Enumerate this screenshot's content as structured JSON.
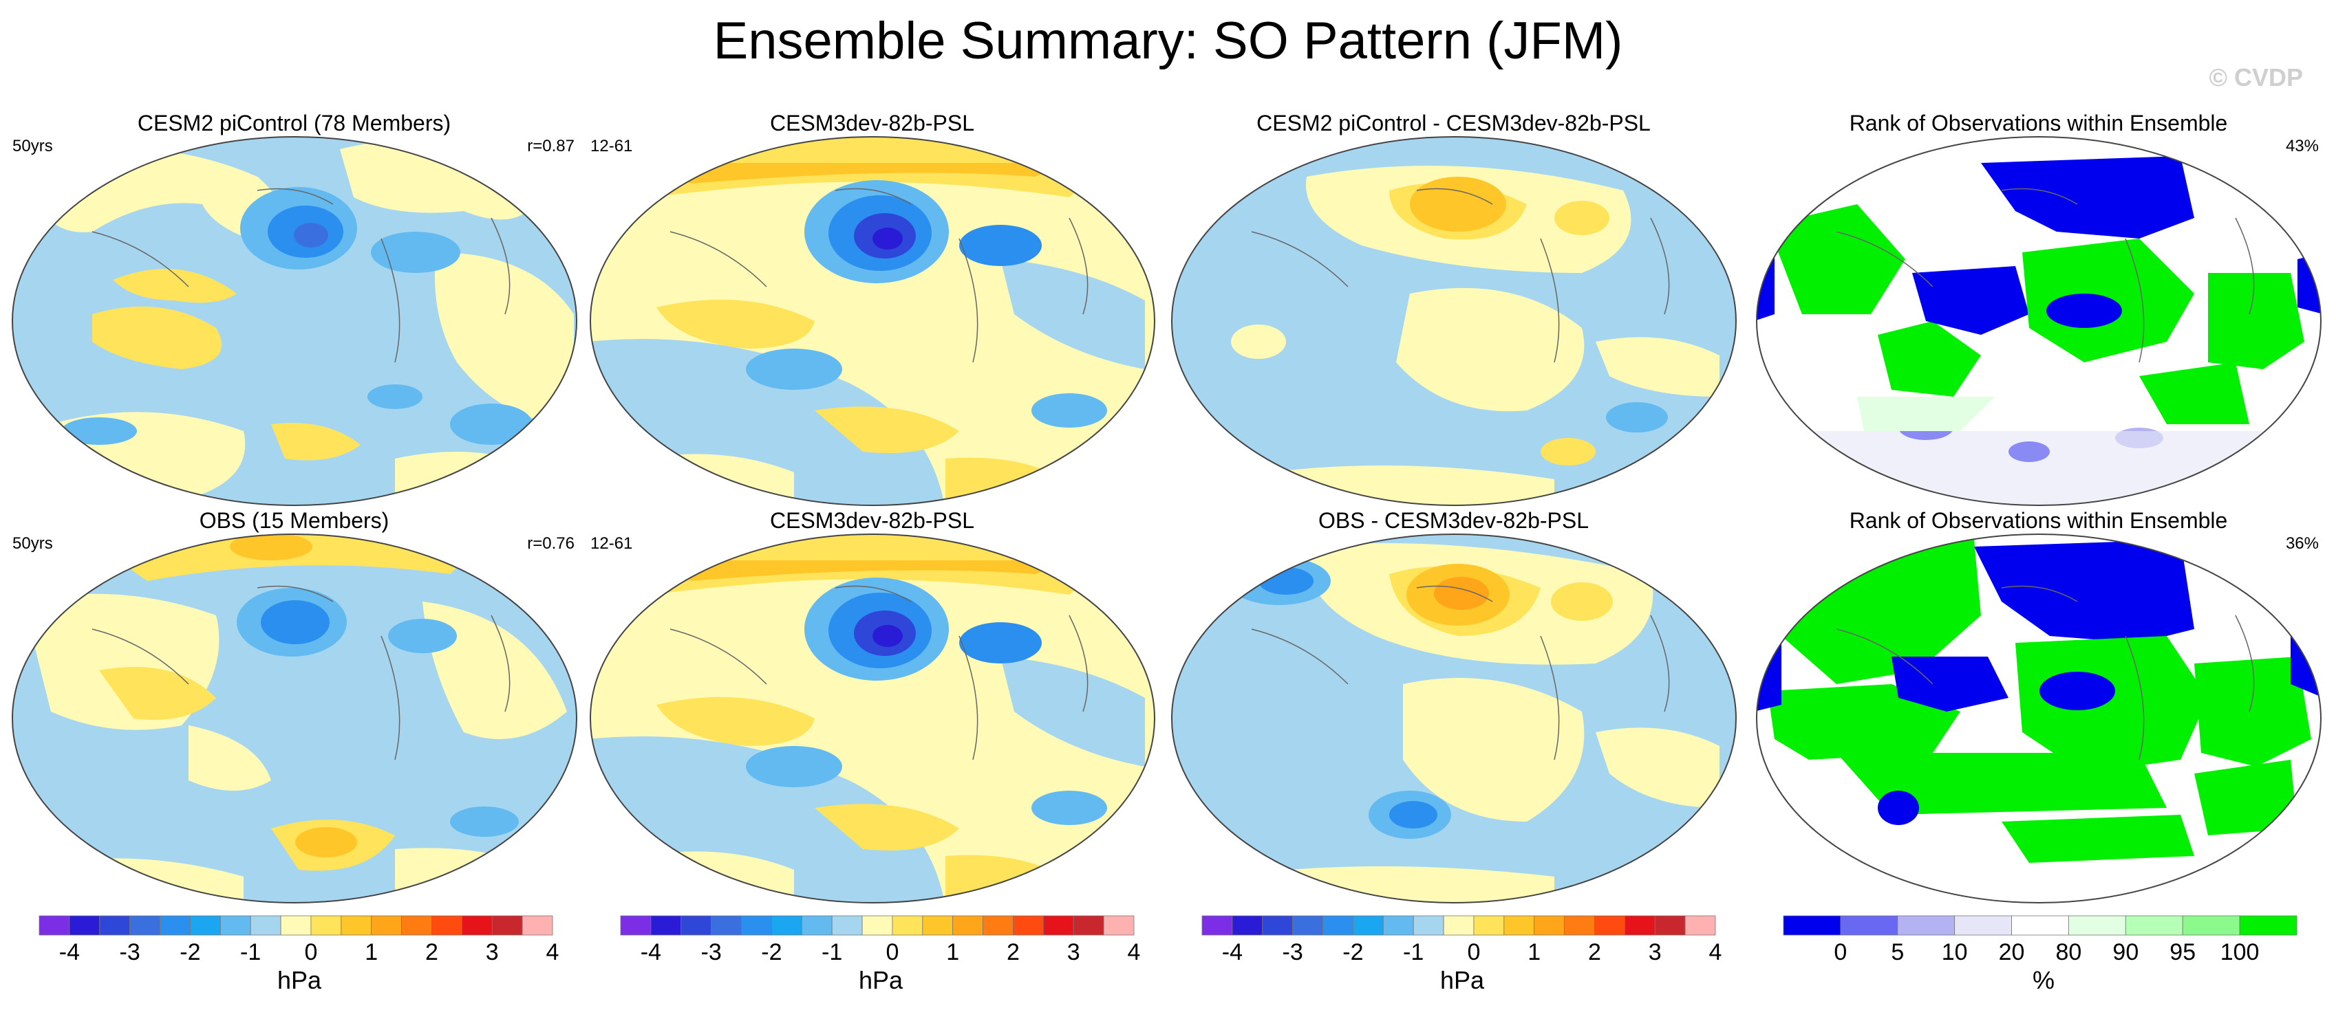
{
  "title": "Ensemble Summary: SO Pattern (JFM)",
  "copyright": "© CVDP",
  "chart_data": [
    {
      "type": "map",
      "title": "CESM2 piControl (78 Members)",
      "left_label": "50yrs",
      "right_label": "r=0.87"
    },
    {
      "type": "map",
      "title": "CESM3dev-82b-PSL",
      "left_label": "12-61",
      "right_label": ""
    },
    {
      "type": "map",
      "title": "CESM2 piControl - CESM3dev-82b-PSL",
      "left_label": "",
      "right_label": ""
    },
    {
      "type": "map",
      "title": "Rank of Observations within Ensemble",
      "left_label": "",
      "right_label": "43%"
    },
    {
      "type": "map",
      "title": "OBS (15 Members)",
      "left_label": "50yrs",
      "right_label": "r=0.76"
    },
    {
      "type": "map",
      "title": "CESM3dev-82b-PSL",
      "left_label": "12-61",
      "right_label": ""
    },
    {
      "type": "map",
      "title": "OBS - CESM3dev-82b-PSL",
      "left_label": "",
      "right_label": ""
    },
    {
      "type": "map",
      "title": "Rank of Observations within Ensemble",
      "left_label": "",
      "right_label": "36%"
    }
  ],
  "colorbars": {
    "psl": {
      "label": "hPa",
      "ticks": [
        "-4",
        "-3",
        "-2",
        "-1",
        "0",
        "1",
        "2",
        "3",
        "4"
      ],
      "colors": [
        "#7b2ee6",
        "#2a1bd6",
        "#2f47d8",
        "#3a6fe0",
        "#2b8fef",
        "#1aa6f0",
        "#62baf0",
        "#a6d6ef",
        "#fffbb6",
        "#ffe35a",
        "#ffc629",
        "#ffa51a",
        "#ff7c12",
        "#ff4a10",
        "#e6141a",
        "#c8282d",
        "#ffb1b1"
      ]
    },
    "rank": {
      "label": "%",
      "ticks": [
        "0",
        "5",
        "10",
        "20",
        "80",
        "90",
        "95",
        "100"
      ],
      "colors": [
        "#0000ee",
        "#6868f2",
        "#b3b3f4",
        "#e6e6f8",
        "#ffffff",
        "#e3ffe3",
        "#b6ffb6",
        "#8cf98c",
        "#00f000"
      ]
    }
  }
}
